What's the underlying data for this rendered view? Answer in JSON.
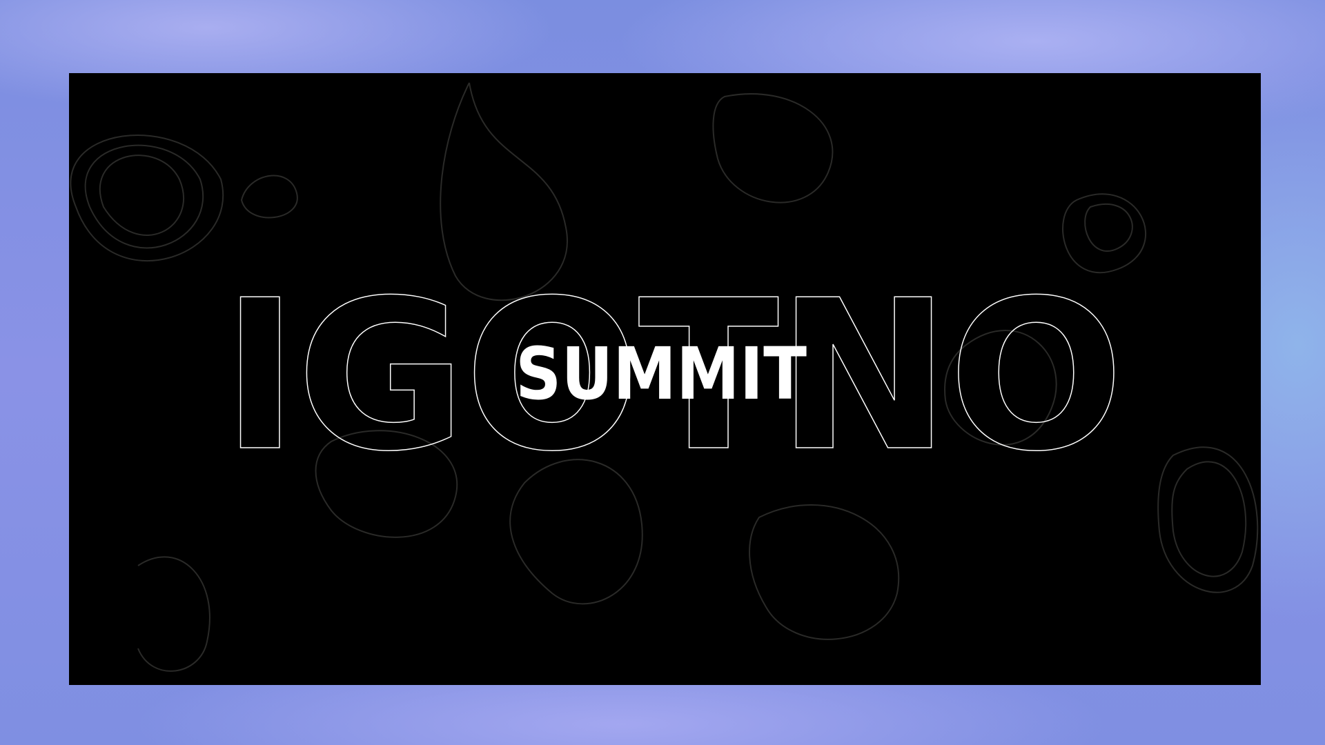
{
  "outline_text": "IGOTNO",
  "title": "SUMMIT"
}
